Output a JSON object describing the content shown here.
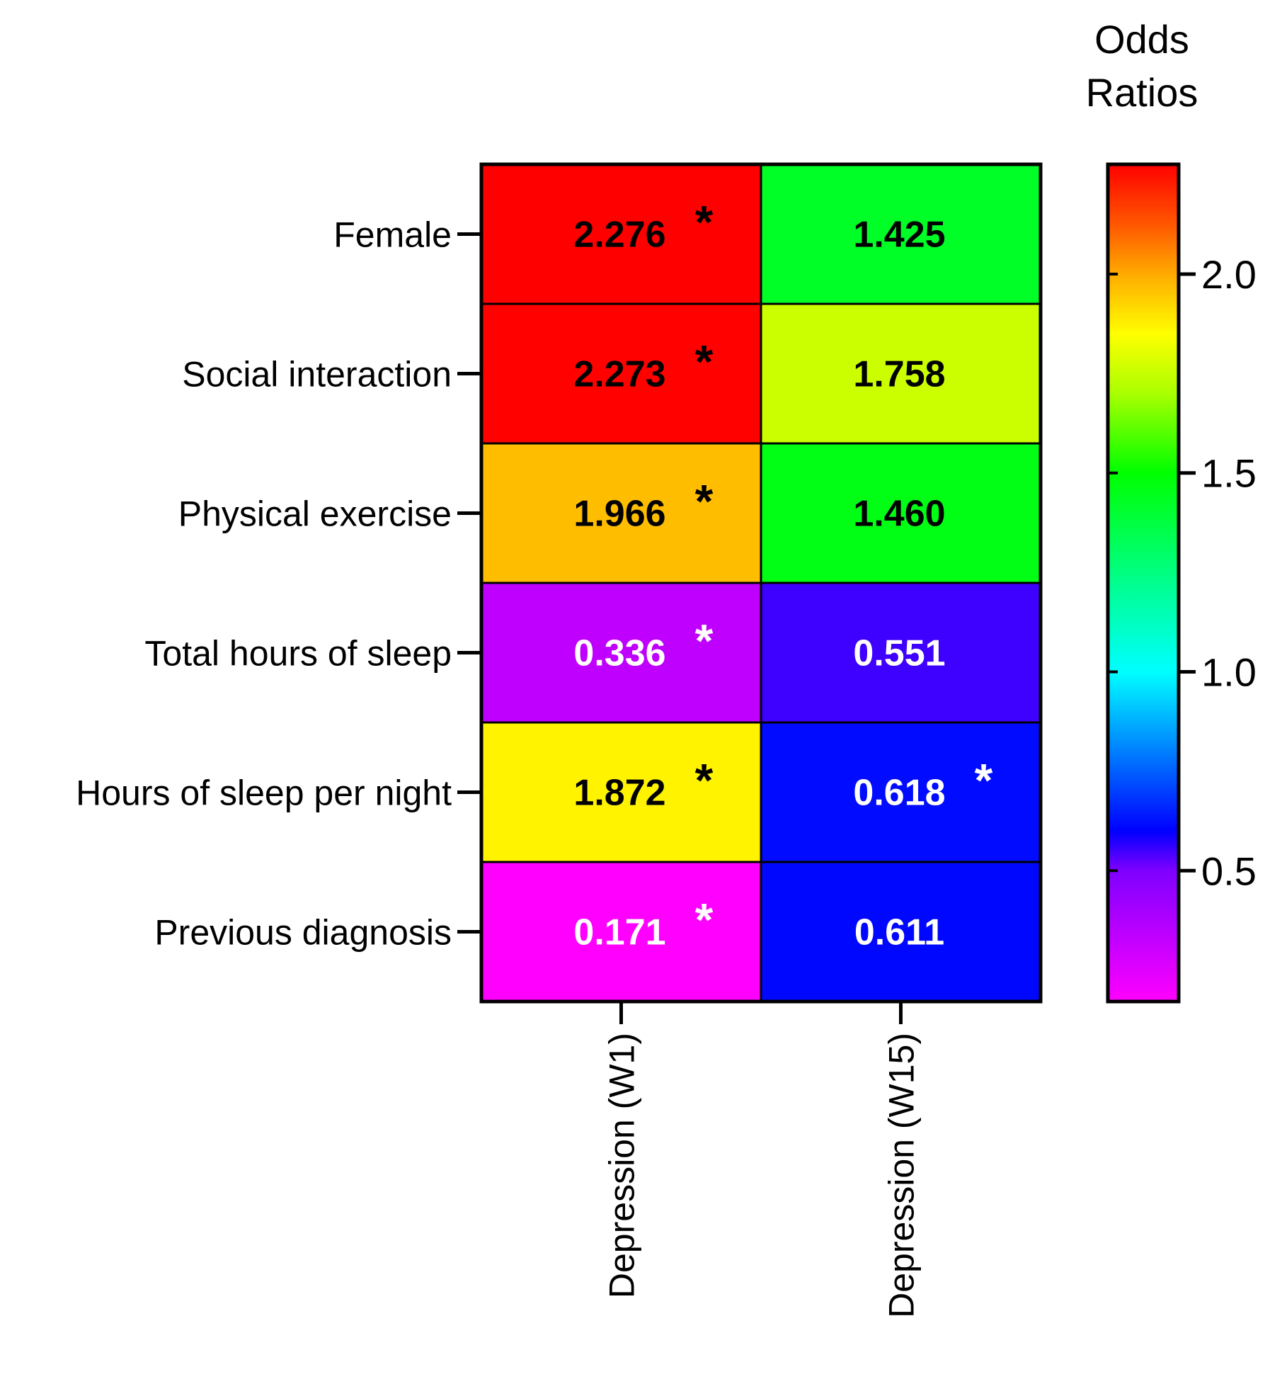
{
  "chart_data": {
    "type": "heatmap",
    "title": "",
    "colorbar_title": [
      "Odds",
      "Ratios"
    ],
    "rows": [
      "Female",
      "Social interaction",
      "Physical exercise",
      "Total hours of sleep",
      "Hours of sleep per night",
      "Previous diagnosis"
    ],
    "columns": [
      "Depression (W1)",
      "Depression (W15)"
    ],
    "values": [
      [
        2.276,
        1.425
      ],
      [
        2.273,
        1.758
      ],
      [
        1.966,
        1.46
      ],
      [
        0.336,
        0.551
      ],
      [
        1.872,
        0.618
      ],
      [
        0.171,
        0.611
      ]
    ],
    "labels": [
      [
        "2.276",
        "1.425"
      ],
      [
        "2.273",
        "1.758"
      ],
      [
        "1.966",
        "1.460"
      ],
      [
        "0.336",
        "0.551"
      ],
      [
        "1.872",
        "0.618"
      ],
      [
        "0.171",
        "0.611"
      ]
    ],
    "significant": [
      [
        true,
        false
      ],
      [
        true,
        false
      ],
      [
        true,
        false
      ],
      [
        true,
        false
      ],
      [
        true,
        true
      ],
      [
        true,
        false
      ]
    ],
    "significance_marker": "*",
    "colorscale": {
      "range": [
        0.171,
        2.276
      ],
      "ticks": [
        0.5,
        1.0,
        1.5,
        2.0
      ],
      "tick_labels": [
        "0.5",
        "1.0",
        "1.5",
        "2.0"
      ],
      "stops": [
        {
          "value": 0.171,
          "color": "#ff00ff"
        },
        {
          "value": 0.5,
          "color": "#7f00ff"
        },
        {
          "value": 0.6,
          "color": "#0000ff"
        },
        {
          "value": 1.0,
          "color": "#00ffff"
        },
        {
          "value": 1.25,
          "color": "#00ff80"
        },
        {
          "value": 1.5,
          "color": "#00ff00"
        },
        {
          "value": 1.7,
          "color": "#aaff00"
        },
        {
          "value": 1.85,
          "color": "#ffff00"
        },
        {
          "value": 2.0,
          "color": "#ffaa00"
        },
        {
          "value": 2.12,
          "color": "#ff5a00"
        },
        {
          "value": 2.276,
          "color": "#ff0000"
        }
      ]
    },
    "text_colors": {
      "dark": "#000000",
      "light": "#ffffff"
    },
    "light_text_below": 0.7
  }
}
